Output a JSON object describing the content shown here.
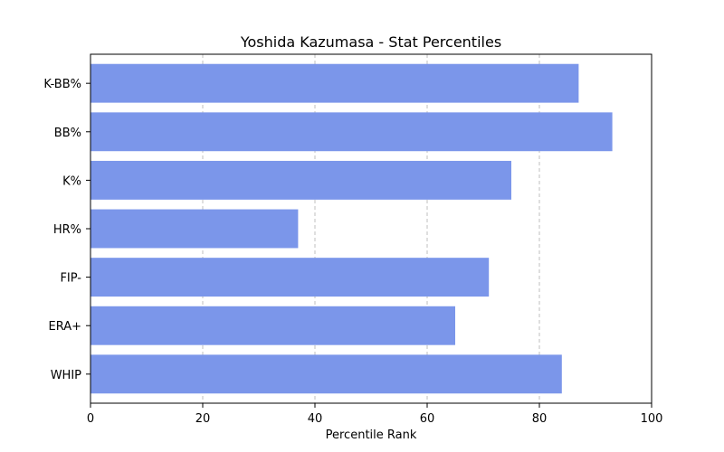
{
  "chart_data": {
    "type": "bar",
    "orientation": "horizontal",
    "title": "Yoshida Kazumasa - Stat Percentiles",
    "xlabel": "Percentile Rank",
    "ylabel": "",
    "xlim": [
      0,
      100
    ],
    "xticks": [
      0,
      20,
      40,
      60,
      80,
      100
    ],
    "grid": "x-dashed",
    "bar_color": "#7b96ea",
    "categories": [
      "K-BB%",
      "BB%",
      "K%",
      "HR%",
      "FIP-",
      "ERA+",
      "WHIP"
    ],
    "values": [
      87,
      93,
      75,
      37,
      71,
      65,
      84
    ]
  }
}
